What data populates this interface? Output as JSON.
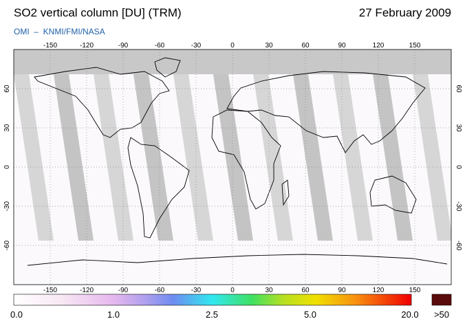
{
  "header": {
    "title": "SO2 vertical column [DU] (TRM)",
    "date": "27 February 2009",
    "source": "OMI  –  KNMI/FMI/NASA"
  },
  "map": {
    "lon_ticks": [
      "-150",
      "-120",
      "-90",
      "-60",
      "-30",
      "0",
      "30",
      "60",
      "90",
      "120",
      "150"
    ],
    "lat_ticks": [
      "60",
      "30",
      "0",
      "-30",
      "-60"
    ]
  },
  "colorbar": {
    "labels": [
      "0.0",
      "1.0",
      "2.5",
      "5.0",
      "20.0"
    ],
    "overflow_label": ">50"
  }
}
